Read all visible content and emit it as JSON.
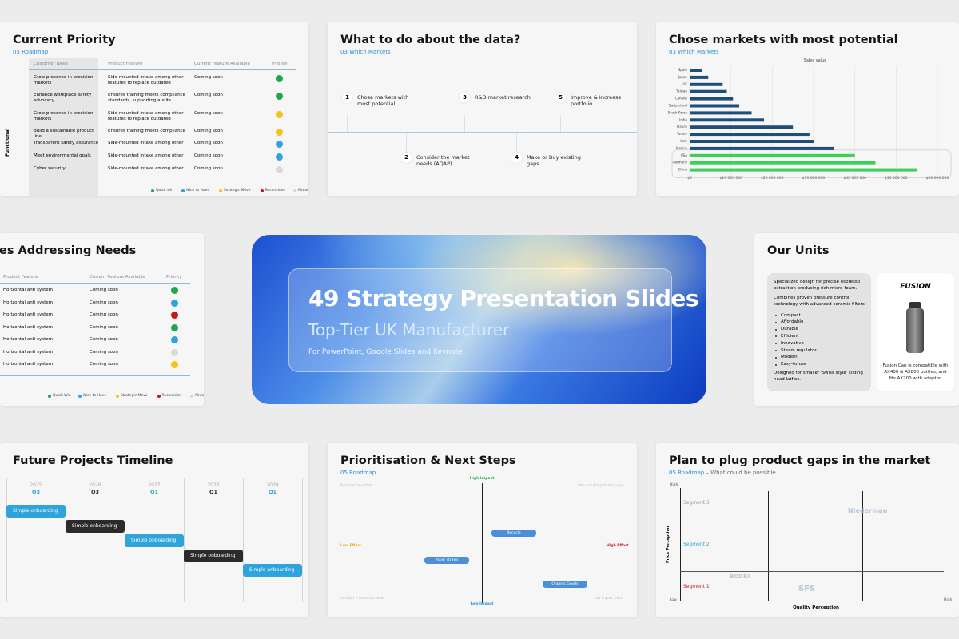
{
  "current_priority": {
    "title": "Current Priority",
    "subtitle": "05 Roadmap",
    "columns": [
      "Customer Need",
      "Product Feature",
      "Current Feature Available",
      "Priority"
    ],
    "group": "Functional",
    "rows": [
      {
        "need": "Grow presence in precision markets",
        "feature": "Side-mounted intake among other features to replace outdated",
        "available": "Coming soon",
        "color": "#1fa64a"
      },
      {
        "need": "Enhance workplace safety advocacy",
        "feature": "Ensures training meets compliance standards, supporting audits",
        "available": "Coming soon",
        "color": "#1fa64a"
      },
      {
        "need": "Grow presence in precision markets",
        "feature": "Side-mounted intake among other features to replace outdated",
        "available": "Coming soon",
        "color": "#f5c11a"
      },
      {
        "need": "Build a sustainable product line",
        "feature": "Ensures training meets compliance",
        "available": "Coming soon",
        "color": "#f5c11a"
      },
      {
        "need": "Transparent safety assurance",
        "feature": "Side-mounted intake among other",
        "available": "Coming soon",
        "color": "#2ea3dc"
      },
      {
        "need": "Meet environmental goals",
        "feature": "Side-mounted intake among other",
        "available": "Coming soon",
        "color": "#2ea3dc"
      },
      {
        "need": "Cyber security",
        "feature": "Side-mounted intake among other",
        "available": "Coming soon",
        "color": "#d9d9d9"
      }
    ],
    "legend": [
      {
        "label": "Quick win",
        "color": "#1fa64a"
      },
      {
        "label": "Nice to Have",
        "color": "#2ea3dc"
      },
      {
        "label": "Strategic Move",
        "color": "#f5c11a"
      },
      {
        "label": "Reconsider",
        "color": "#c8161d"
      },
      {
        "label": "Already have",
        "color": "#d9d9d9"
      }
    ]
  },
  "what_to_do": {
    "title": "What to do about the data?",
    "subtitle": "03 Which Markets",
    "steps": [
      {
        "num": 1,
        "text": "Chose markets with most potential"
      },
      {
        "num": 2,
        "text": "Consider the market needs (AQAP)"
      },
      {
        "num": 3,
        "text": "R&D market research"
      },
      {
        "num": 4,
        "text": "Make or Buy existing gaps"
      },
      {
        "num": 5,
        "text": "Improve & Increase portfolio"
      }
    ]
  },
  "markets": {
    "title": "Chose markets with most potential",
    "subtitle": "03 Which Markets",
    "chart": {
      "type": "bar",
      "axis_title": "Sales value",
      "categories": [
        "Spain",
        "Japan",
        "UK",
        "Taiwan",
        "Canada",
        "Switzerland",
        "South Korea",
        "India",
        "France",
        "Turkey",
        "Italy",
        "Mexico",
        "USA",
        "Germany",
        "China"
      ],
      "values": [
        3000000,
        4500000,
        8000000,
        9000000,
        10500000,
        12000000,
        15000000,
        18000000,
        25000000,
        29000000,
        30000000,
        35000000,
        40000000,
        45000000,
        55000000
      ],
      "colors": [
        "#1f4e79",
        "#1f4e79",
        "#1f4e79",
        "#1f4e79",
        "#1f4e79",
        "#1f4e79",
        "#1f4e79",
        "#1f4e79",
        "#1f4e79",
        "#1f4e79",
        "#1f4e79",
        "#1f4e79",
        "#3ccf5a",
        "#3ccf5a",
        "#3ccf5a"
      ],
      "xlim": [
        0,
        60000000
      ],
      "xticks": [
        {
          "value": 0,
          "label": "$0"
        },
        {
          "value": 10000000,
          "label": "$10 000 000"
        },
        {
          "value": 20000000,
          "label": "$20 000 000"
        },
        {
          "value": 30000000,
          "label": "$30 000 000"
        },
        {
          "value": 40000000,
          "label": "$40 000 000"
        },
        {
          "value": 50000000,
          "label": "$50 000 000"
        },
        {
          "value": 60000000,
          "label": "$60 000 000"
        }
      ],
      "grid": true
    }
  },
  "features": {
    "title": "es Addressing Needs",
    "columns": [
      "Product Feature",
      "Current Feature Available",
      "Priority"
    ],
    "rows": [
      {
        "feature": "Horizontal anti system",
        "available": "Coming soon",
        "color": "#1fa64a"
      },
      {
        "feature": "Horizontal anti system",
        "available": "Coming soon",
        "color": "#2ea3dc"
      },
      {
        "feature": "Horizontal anti system",
        "available": "Coming soon",
        "color": "#c8161d"
      },
      {
        "feature": "Horizontal anti system",
        "available": "Coming soon",
        "color": "#1fa64a"
      },
      {
        "feature": "Horizontal anti system",
        "available": "Coming soon",
        "color": "#2ea3dc"
      },
      {
        "feature": "Horizontal anti system",
        "available": "Coming soon",
        "color": "#d9d9d9"
      },
      {
        "feature": "Horizontal anti system",
        "available": "Coming soon",
        "color": "#f5c11a"
      }
    ],
    "legend": [
      {
        "label": "Quick Win",
        "color": "#1fa64a"
      },
      {
        "label": "Nice to Have",
        "color": "#2ea3dc"
      },
      {
        "label": "Strategic Move",
        "color": "#f5c11a"
      },
      {
        "label": "Reconsider",
        "color": "#c8161d"
      },
      {
        "label": "Already have",
        "color": "#d9d9d9"
      }
    ]
  },
  "hero": {
    "title": "49 Strategy Presentation Slides",
    "subtitle": "Top-Tier UK Manufacturer",
    "note": "For PowerPoint, Google Slides and Keynote"
  },
  "units": {
    "title": "Our Units",
    "desc1": "Specialized design for precise espresso extraction producing rich micro-foam.",
    "desc2": "Combines proven pressure control technology with advanced ceramic filters.",
    "bullets": [
      "Compact",
      "Affordable",
      "Durable",
      "Efficient",
      "Innovative",
      "Steam regulator",
      "Modern",
      "Easy-to-use"
    ],
    "footer": "Designed for smaller 'Swiss style' sliding head lathes.",
    "brand": "FUSION",
    "caption": "Fusion Cap is compatible with AX400 & AX800 bottles, and fits AX200 with adaptor."
  },
  "timeline": {
    "title": "Future Projects Timeline",
    "periods": [
      {
        "year": "2025",
        "quarter": "Q3"
      },
      {
        "year": "2026",
        "quarter": "Q3"
      },
      {
        "year": "2027",
        "quarter": "Q1"
      },
      {
        "year": "2028",
        "quarter": "Q1"
      },
      {
        "year": "2030",
        "quarter": "Q1"
      }
    ],
    "tasks": [
      {
        "label": "Simple onboarding",
        "color": "#2ea3dc"
      },
      {
        "label": "Simple onboarding",
        "color": "#2b2b2b"
      },
      {
        "label": "Simple onboarding",
        "color": "#2ea3dc"
      },
      {
        "label": "Simple onboarding",
        "color": "#2b2b2b"
      },
      {
        "label": "Simple onboarding",
        "color": "#2ea3dc"
      }
    ]
  },
  "prioritisation": {
    "title": "Prioritisation & Next Steps",
    "subtitle": "05 Roadmap",
    "high_impact": "High Impact",
    "low_impact": "Low Impact",
    "low_effort": "Low Effort",
    "high_effort": "High Effort",
    "quadrant_notes": [
      "Prioritise these first",
      "Plan and delegate resources",
      "Consider if resources allow",
      "Low impact, effort"
    ],
    "items": [
      "Recycle",
      "Paper straws",
      "Organic Goods"
    ]
  },
  "plan": {
    "title": "Plan to plug product gaps in the market",
    "subtitle": "05 Roadmap",
    "subtitle_note": " – What could be possible",
    "y_axis": "Price Perception",
    "x_axis": "Quality Perception",
    "y_high": "High",
    "y_low": "Low",
    "x_high": "High",
    "segments": [
      {
        "label": "Segment 3",
        "color": "#9a9a9a"
      },
      {
        "label": "Segment 2",
        "color": "#2ea3dc"
      },
      {
        "label": "Segment 1",
        "color": "#c8161d"
      }
    ],
    "logos": [
      "Niederman",
      "BODRI",
      "SFS"
    ]
  }
}
